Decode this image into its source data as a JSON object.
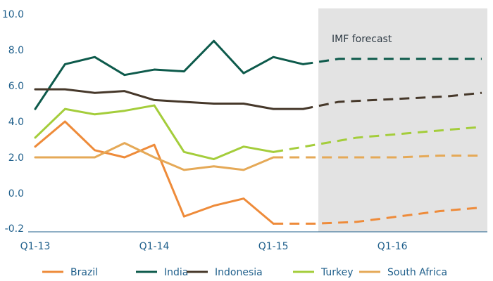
{
  "chart_data": {
    "type": "line",
    "title": "",
    "xlabel": "",
    "ylabel": "",
    "x": [
      "Q1-13",
      "Q2-13",
      "Q3-13",
      "Q4-13",
      "Q1-14",
      "Q2-14",
      "Q3-14",
      "Q4-14",
      "Q1-15",
      "Q2-15",
      "Q3-15",
      "Q4-15",
      "Q1-16",
      "Q2-16",
      "Q3-16",
      "Q4-16"
    ],
    "x_tick_labels": [
      "Q1-13",
      "Q1-14",
      "Q1-15",
      "Q1-16"
    ],
    "y_ticks": [
      -0.2,
      0.0,
      2.0,
      4.0,
      6.0,
      8.0,
      10.0
    ],
    "y_tick_labels": [
      "-0.2",
      "0.0",
      "2.0",
      "4.0",
      "6.0",
      "8.0",
      "10.0"
    ],
    "ylim": [
      -2.0,
      10.0
    ],
    "grid": false,
    "legend_position": "bottom",
    "forecast_start": "Q2-15",
    "annotation": "IMF forecast",
    "series": [
      {
        "name": "Brazil",
        "color": "#ee8b3a",
        "actual": [
          2.6,
          4.0,
          2.4,
          2.0,
          2.7,
          -1.3,
          -0.7,
          -0.3,
          -1.7
        ],
        "forecast": [
          -1.7,
          -1.7,
          -1.6,
          -1.3,
          -1.0,
          -0.8
        ]
      },
      {
        "name": "India",
        "color": "#0d5a4b",
        "actual": [
          4.7,
          7.2,
          7.6,
          6.6,
          6.9,
          6.8,
          8.5,
          6.7,
          7.6,
          7.2
        ],
        "forecast": [
          7.2,
          7.5,
          7.5,
          7.5,
          7.5,
          7.5
        ]
      },
      {
        "name": "Indonesia",
        "color": "#46382a",
        "actual": [
          5.8,
          5.8,
          5.6,
          5.7,
          5.2,
          5.1,
          5.0,
          5.0,
          4.7,
          4.7
        ],
        "forecast": [
          4.7,
          5.1,
          5.2,
          5.3,
          5.4,
          5.6
        ]
      },
      {
        "name": "Turkey",
        "color": "#a4cd3b",
        "actual": [
          3.1,
          4.7,
          4.4,
          4.6,
          4.9,
          2.3,
          1.9,
          2.6,
          2.3
        ],
        "forecast": [
          2.3,
          2.7,
          3.1,
          3.3,
          3.5,
          3.7
        ]
      },
      {
        "name": "South Africa",
        "color": "#e5a957",
        "actual": [
          2.0,
          2.0,
          2.0,
          2.8,
          2.0,
          1.3,
          1.5,
          1.3,
          2.0
        ],
        "forecast": [
          2.0,
          2.0,
          2.0,
          2.0,
          2.1,
          2.1
        ]
      }
    ]
  }
}
